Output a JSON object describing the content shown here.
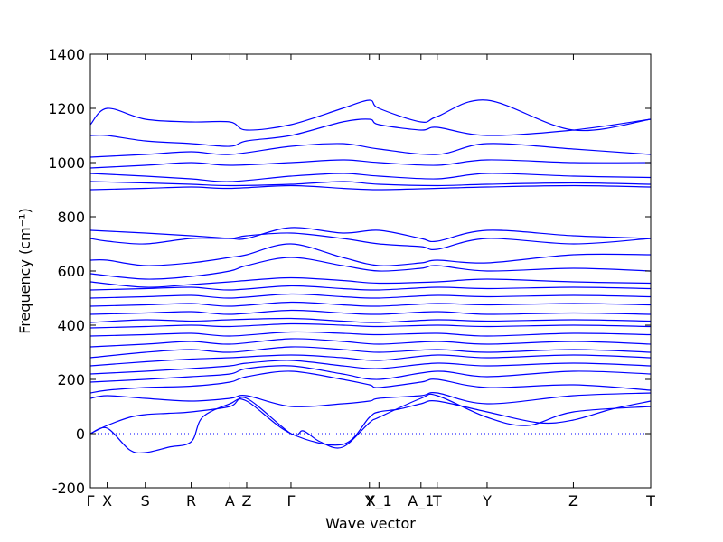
{
  "chart_data": {
    "type": "line",
    "xlabel": "Wave vector",
    "ylabel": "Frequency (cm⁻¹)",
    "ylim": [
      -200,
      1400
    ],
    "yticks": [
      -200,
      0,
      200,
      400,
      600,
      800,
      1000,
      1200,
      1400
    ],
    "xticks": [
      {
        "label": "Γ",
        "x": 0.0
      },
      {
        "label": "X",
        "x": 0.03
      },
      {
        "label": "S",
        "x": 0.098
      },
      {
        "label": "R",
        "x": 0.18
      },
      {
        "label": "A",
        "x": 0.249
      },
      {
        "label": "Z",
        "x": 0.279
      },
      {
        "label": "Γ",
        "x": 0.358
      },
      {
        "label": "Y",
        "x": 0.498
      },
      {
        "label": "X_1",
        "x": 0.515
      },
      {
        "label": "A_1",
        "x": 0.59
      },
      {
        "label": "T",
        "x": 0.619
      },
      {
        "label": "Y",
        "x": 0.708
      },
      {
        "label": "Z",
        "x": 0.862
      },
      {
        "label": "T",
        "x": 1.0
      }
    ],
    "grid": false,
    "legend": "none",
    "zero_line": {
      "y": 0,
      "style": "dotted"
    },
    "line_color": "#0000ff",
    "series": [
      {
        "x": [
          0.0,
          0.03,
          0.07,
          0.098,
          0.14,
          0.18,
          0.2,
          0.249,
          0.279,
          0.358,
          0.45,
          0.498,
          0.515,
          0.55,
          0.59,
          0.619,
          0.708,
          0.8,
          0.862,
          0.93,
          1.0
        ],
        "y": [
          0,
          20,
          -60,
          -70,
          -50,
          -30,
          60,
          110,
          120,
          0,
          -40,
          60,
          80,
          90,
          110,
          120,
          80,
          40,
          50,
          90,
          120
        ]
      },
      {
        "x": [
          0.0,
          0.03,
          0.07,
          0.098,
          0.14,
          0.18,
          0.249,
          0.279,
          0.358,
          0.38,
          0.41,
          0.45,
          0.498,
          0.515,
          0.59,
          0.619,
          0.708,
          0.78,
          0.862,
          1.0
        ],
        "y": [
          0,
          30,
          60,
          70,
          75,
          80,
          100,
          130,
          0,
          10,
          -30,
          -50,
          40,
          60,
          130,
          140,
          60,
          30,
          80,
          100
        ]
      },
      {
        "x": [
          0.0,
          0.03,
          0.098,
          0.18,
          0.249,
          0.279,
          0.358,
          0.45,
          0.498,
          0.515,
          0.59,
          0.619,
          0.708,
          0.862,
          1.0
        ],
        "y": [
          130,
          140,
          130,
          120,
          130,
          140,
          100,
          110,
          120,
          130,
          140,
          150,
          110,
          140,
          150
        ]
      },
      {
        "x": [
          0.0,
          0.03,
          0.098,
          0.18,
          0.249,
          0.279,
          0.358,
          0.45,
          0.498,
          0.515,
          0.59,
          0.619,
          0.708,
          0.862,
          1.0
        ],
        "y": [
          150,
          160,
          170,
          175,
          190,
          210,
          230,
          200,
          180,
          170,
          190,
          200,
          170,
          180,
          160
        ]
      },
      {
        "x": [
          0.0,
          0.098,
          0.18,
          0.249,
          0.279,
          0.358,
          0.45,
          0.515,
          0.619,
          0.708,
          0.862,
          1.0
        ],
        "y": [
          190,
          200,
          210,
          220,
          240,
          250,
          220,
          200,
          230,
          210,
          230,
          220
        ]
      },
      {
        "x": [
          0.0,
          0.098,
          0.18,
          0.249,
          0.279,
          0.358,
          0.45,
          0.515,
          0.619,
          0.708,
          0.862,
          1.0
        ],
        "y": [
          220,
          230,
          240,
          250,
          260,
          270,
          250,
          240,
          260,
          250,
          260,
          250
        ]
      },
      {
        "x": [
          0.0,
          0.098,
          0.18,
          0.249,
          0.358,
          0.45,
          0.515,
          0.619,
          0.708,
          0.862,
          1.0
        ],
        "y": [
          250,
          265,
          275,
          280,
          290,
          280,
          270,
          290,
          280,
          290,
          280
        ]
      },
      {
        "x": [
          0.0,
          0.098,
          0.18,
          0.249,
          0.358,
          0.45,
          0.515,
          0.619,
          0.708,
          0.862,
          1.0
        ],
        "y": [
          280,
          300,
          310,
          300,
          320,
          310,
          300,
          310,
          300,
          310,
          300
        ]
      },
      {
        "x": [
          0.0,
          0.098,
          0.18,
          0.249,
          0.358,
          0.45,
          0.515,
          0.619,
          0.708,
          0.862,
          1.0
        ],
        "y": [
          320,
          330,
          340,
          330,
          350,
          340,
          330,
          340,
          330,
          340,
          330
        ]
      },
      {
        "x": [
          0.0,
          0.098,
          0.18,
          0.249,
          0.358,
          0.45,
          0.515,
          0.619,
          0.708,
          0.862,
          1.0
        ],
        "y": [
          360,
          365,
          370,
          360,
          375,
          370,
          365,
          370,
          360,
          370,
          365
        ]
      },
      {
        "x": [
          0.0,
          0.098,
          0.18,
          0.249,
          0.358,
          0.45,
          0.515,
          0.619,
          0.708,
          0.862,
          1.0
        ],
        "y": [
          390,
          395,
          400,
          395,
          405,
          400,
          395,
          400,
          395,
          400,
          395
        ]
      },
      {
        "x": [
          0.0,
          0.098,
          0.18,
          0.249,
          0.358,
          0.45,
          0.515,
          0.619,
          0.708,
          0.862,
          1.0
        ],
        "y": [
          410,
          420,
          415,
          420,
          425,
          415,
          410,
          420,
          415,
          420,
          415
        ]
      },
      {
        "x": [
          0.0,
          0.098,
          0.18,
          0.249,
          0.358,
          0.45,
          0.515,
          0.619,
          0.708,
          0.862,
          1.0
        ],
        "y": [
          440,
          445,
          450,
          440,
          455,
          445,
          440,
          450,
          440,
          445,
          440
        ]
      },
      {
        "x": [
          0.0,
          0.098,
          0.18,
          0.249,
          0.358,
          0.45,
          0.515,
          0.619,
          0.708,
          0.862,
          1.0
        ],
        "y": [
          470,
          475,
          480,
          470,
          485,
          475,
          470,
          480,
          475,
          480,
          475
        ]
      },
      {
        "x": [
          0.0,
          0.098,
          0.18,
          0.249,
          0.358,
          0.45,
          0.515,
          0.619,
          0.708,
          0.862,
          1.0
        ],
        "y": [
          500,
          505,
          510,
          500,
          515,
          505,
          500,
          510,
          505,
          510,
          505
        ]
      },
      {
        "x": [
          0.0,
          0.098,
          0.18,
          0.249,
          0.358,
          0.45,
          0.515,
          0.619,
          0.708,
          0.862,
          1.0
        ],
        "y": [
          530,
          535,
          540,
          530,
          545,
          535,
          530,
          540,
          535,
          540,
          535
        ]
      },
      {
        "x": [
          0.0,
          0.098,
          0.18,
          0.249,
          0.279,
          0.358,
          0.45,
          0.515,
          0.619,
          0.708,
          0.862,
          1.0
        ],
        "y": [
          560,
          540,
          550,
          560,
          565,
          575,
          565,
          555,
          560,
          570,
          560,
          555
        ]
      },
      {
        "x": [
          0.0,
          0.098,
          0.18,
          0.249,
          0.279,
          0.358,
          0.45,
          0.515,
          0.59,
          0.619,
          0.708,
          0.862,
          1.0
        ],
        "y": [
          590,
          570,
          580,
          600,
          620,
          650,
          620,
          600,
          610,
          620,
          600,
          610,
          600
        ]
      },
      {
        "x": [
          0.0,
          0.03,
          0.098,
          0.18,
          0.249,
          0.279,
          0.358,
          0.45,
          0.515,
          0.59,
          0.619,
          0.708,
          0.862,
          1.0
        ],
        "y": [
          640,
          640,
          620,
          630,
          650,
          660,
          700,
          650,
          620,
          630,
          640,
          630,
          660,
          660
        ]
      },
      {
        "x": [
          0.0,
          0.03,
          0.098,
          0.18,
          0.249,
          0.279,
          0.358,
          0.45,
          0.515,
          0.59,
          0.619,
          0.708,
          0.862,
          1.0
        ],
        "y": [
          720,
          710,
          700,
          720,
          720,
          730,
          740,
          720,
          700,
          690,
          680,
          720,
          700,
          720
        ]
      },
      {
        "x": [
          0.0,
          0.098,
          0.18,
          0.249,
          0.279,
          0.358,
          0.45,
          0.515,
          0.59,
          0.619,
          0.708,
          0.862,
          1.0
        ],
        "y": [
          750,
          740,
          730,
          720,
          720,
          760,
          740,
          750,
          720,
          710,
          750,
          730,
          720
        ]
      },
      {
        "x": [
          0.0,
          0.098,
          0.18,
          0.249,
          0.358,
          0.45,
          0.515,
          0.619,
          0.708,
          0.862,
          1.0
        ],
        "y": [
          900,
          905,
          910,
          905,
          915,
          905,
          900,
          905,
          910,
          915,
          910
        ]
      },
      {
        "x": [
          0.0,
          0.098,
          0.18,
          0.249,
          0.358,
          0.45,
          0.515,
          0.619,
          0.708,
          0.862,
          1.0
        ],
        "y": [
          930,
          925,
          920,
          915,
          920,
          930,
          920,
          915,
          920,
          925,
          920
        ]
      },
      {
        "x": [
          0.0,
          0.098,
          0.18,
          0.249,
          0.358,
          0.45,
          0.515,
          0.619,
          0.708,
          0.862,
          1.0
        ],
        "y": [
          960,
          950,
          940,
          930,
          950,
          960,
          950,
          940,
          960,
          950,
          945
        ]
      },
      {
        "x": [
          0.0,
          0.098,
          0.18,
          0.249,
          0.358,
          0.45,
          0.515,
          0.619,
          0.708,
          0.862,
          1.0
        ],
        "y": [
          980,
          990,
          1000,
          990,
          1000,
          1010,
          1000,
          990,
          1010,
          1000,
          1000
        ]
      },
      {
        "x": [
          0.0,
          0.098,
          0.18,
          0.249,
          0.358,
          0.45,
          0.515,
          0.619,
          0.708,
          0.862,
          1.0
        ],
        "y": [
          1020,
          1030,
          1040,
          1030,
          1060,
          1070,
          1050,
          1030,
          1070,
          1050,
          1030
        ]
      },
      {
        "x": [
          0.0,
          0.03,
          0.098,
          0.18,
          0.249,
          0.279,
          0.358,
          0.45,
          0.498,
          0.515,
          0.59,
          0.619,
          0.708,
          0.862,
          1.0
        ],
        "y": [
          1100,
          1100,
          1080,
          1070,
          1060,
          1080,
          1100,
          1150,
          1160,
          1140,
          1120,
          1130,
          1100,
          1120,
          1160
        ]
      },
      {
        "x": [
          0.0,
          0.03,
          0.098,
          0.18,
          0.249,
          0.279,
          0.358,
          0.45,
          0.498,
          0.515,
          0.59,
          0.619,
          0.708,
          0.862,
          1.0
        ],
        "y": [
          1140,
          1200,
          1160,
          1150,
          1150,
          1120,
          1140,
          1200,
          1230,
          1200,
          1150,
          1170,
          1230,
          1120,
          1160
        ]
      }
    ]
  }
}
